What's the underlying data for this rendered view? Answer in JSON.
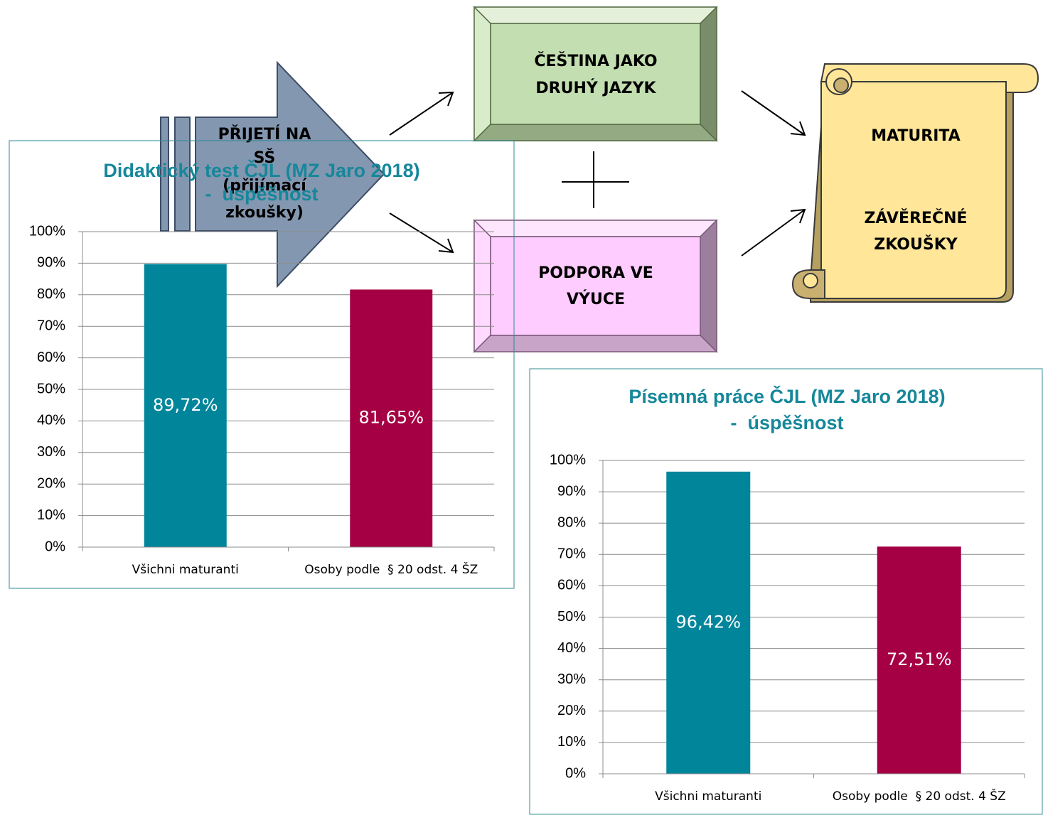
{
  "diagram": {
    "admission": [
      "PŘIJETÍ NA",
      "SŠ",
      "(přijímací",
      "zkoušky)"
    ],
    "czech": [
      "ČEŠTINA JAKO",
      "DRUHÝ JAZYK"
    ],
    "support": [
      "PODPORA VE",
      "VÝUCE"
    ],
    "exam": [
      "MATURITA",
      "ZÁVĚREČNÉ",
      "ZKOUŠKY"
    ]
  },
  "chart_data": [
    {
      "type": "bar",
      "title": [
        "Didaktický test ČJL (MZ Jaro 2018)",
        "-  úspěšnost"
      ],
      "categories": [
        "Všichni maturanti",
        "Osoby podle  § 20 odst. 4 ŠZ"
      ],
      "values": [
        89.72,
        81.65
      ],
      "value_labels": [
        "89,72%",
        "81,65%"
      ],
      "colors": [
        "#00859b",
        "#a50044"
      ],
      "ylim": [
        0,
        100
      ],
      "yticks": [
        {
          "value": 0,
          "label": "0%"
        },
        {
          "value": 10,
          "label": "10%"
        },
        {
          "value": 20,
          "label": "20%"
        },
        {
          "value": 30,
          "label": "30%"
        },
        {
          "value": 40,
          "label": "40%"
        },
        {
          "value": 50,
          "label": "50%"
        },
        {
          "value": 60,
          "label": "60%"
        },
        {
          "value": 70,
          "label": "70%"
        },
        {
          "value": 80,
          "label": "80%"
        },
        {
          "value": 90,
          "label": "90%"
        },
        {
          "value": 100,
          "label": "100%"
        }
      ],
      "grid": true
    },
    {
      "type": "bar",
      "title": [
        "Písemná práce ČJL (MZ Jaro 2018)",
        "-  úspěšnost"
      ],
      "categories": [
        "Všichni maturanti",
        "Osoby podle  § 20 odst. 4 ŠZ"
      ],
      "values": [
        96.42,
        72.51
      ],
      "value_labels": [
        "96,42%",
        "72,51%"
      ],
      "colors": [
        "#00859b",
        "#a50044"
      ],
      "ylim": [
        0,
        100
      ],
      "yticks": [
        {
          "value": 0,
          "label": "0%"
        },
        {
          "value": 10,
          "label": "10%"
        },
        {
          "value": 20,
          "label": "20%"
        },
        {
          "value": 30,
          "label": "30%"
        },
        {
          "value": 40,
          "label": "40%"
        },
        {
          "value": 50,
          "label": "50%"
        },
        {
          "value": 60,
          "label": "60%"
        },
        {
          "value": 70,
          "label": "70%"
        },
        {
          "value": 80,
          "label": "80%"
        },
        {
          "value": 90,
          "label": "90%"
        },
        {
          "value": 100,
          "label": "100%"
        }
      ],
      "grid": true
    }
  ]
}
